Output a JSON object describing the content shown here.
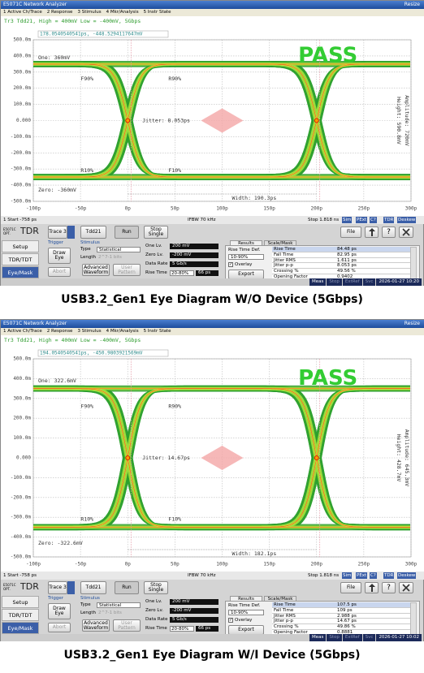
{
  "panels": [
    {
      "window_title": "E5071C Network Analyzer",
      "menu": [
        "1 Active Ch/Trace",
        "2 Response",
        "3 Stimulus",
        "4 Mkr/Analysis",
        "5 Instr State"
      ],
      "resize": "Resize",
      "trace_header": "Tr3 Tdd21, High = 400mV Low = -400mV, 5Gbps",
      "marker_readout": "178.0540540541ps, -448.5294117647mV",
      "y_labels": [
        "500.0m",
        "400.0m",
        "300.0m",
        "200.0m",
        "100.0m",
        "0.000",
        "-100.0m",
        "-200.0m",
        "-300.0m",
        "-400.0m",
        "-500.0m"
      ],
      "x_labels": [
        "-100p",
        "-50p",
        "0p",
        "50p",
        "100p",
        "150p",
        "200p",
        "250p",
        "300p"
      ],
      "annotations": {
        "pass": "PASS",
        "one": "One: 360mV",
        "zero": "Zero: -360mV",
        "jitter": "Jitter: 8.053ps",
        "height": "Height: 590.8mV",
        "amplitude": "Amplitude: 720mV",
        "width": "Width: 190.3ps",
        "f90": "F90%",
        "r90": "R90%",
        "r10": "R10%",
        "f10": "F10%"
      },
      "status": {
        "start": "1 Start -758 ps",
        "ifbw": "IFBW 70 kHz",
        "stop": "Stop 1.818 ns",
        "flags": [
          "Sim",
          "PExt",
          "C?",
          "TDR",
          "Deskew"
        ]
      },
      "toolbar": {
        "logo_small": "E5071C OPT.",
        "logo": "TDR",
        "trace": "Trace 3",
        "param": "Tdd21",
        "run": "Run",
        "stop_single": "Stop Single",
        "file": "File",
        "help": "?"
      },
      "nav": [
        "Setup",
        "TDR/TDT",
        "Eye/Mask"
      ],
      "trigger": {
        "title": "Trigger",
        "draw_eye": "Draw Eye",
        "abort": "Abort"
      },
      "stimulus": {
        "title": "Stimulus",
        "type_label": "Type",
        "type_value": "Statistical",
        "length_label": "Length",
        "length_value": "2^7-1 bits",
        "advanced": "Advanced Waveform",
        "user_pattern": "User Pattern",
        "one_label": "One Lv.",
        "one_value": "200 mV",
        "zero_label": "Zero Lv.",
        "zero_value": "-200 mV",
        "rate_label": "Data Rate",
        "rate_value": "5 Gb/s",
        "rise_label": "Rise Time",
        "rise_def": "20-80%",
        "rise_value": "66 ps"
      },
      "results": {
        "tabs": [
          "Results",
          "Scale/Mask"
        ],
        "rise_def_label": "Rise Time Def.",
        "rise_def_value": "10-90%",
        "overlay": "Overlay",
        "export": "Export",
        "rows": [
          {
            "label": "Rise Time",
            "value": "84.48 ps"
          },
          {
            "label": "Fall Time",
            "value": "82.95 ps"
          },
          {
            "label": "Jitter RMS",
            "value": "1.611 ps"
          },
          {
            "label": "Jitter p-p",
            "value": "8.053 ps"
          },
          {
            "label": "Crossing %",
            "value": "49.56 %"
          },
          {
            "label": "Opening Factor",
            "value": "0.9402"
          }
        ]
      },
      "statusbar": [
        "Meas",
        "Stop",
        "ExtRef",
        "Svc"
      ],
      "timestamp": "2026-01-27 10:20",
      "caption": "USB3.2_Gen1 Eye Diagram W/O Device (5Gbps)"
    },
    {
      "window_title": "E5071C Network Analyzer",
      "menu": [
        "1 Active Ch/Trace",
        "2 Response",
        "3 Stimulus",
        "4 Mkr/Analysis",
        "5 Instr State"
      ],
      "resize": "Resize",
      "trace_header": "Tr3 Tdd21, High = 400mV Low = -400mV, 5Gbps",
      "marker_readout": "194.0540540541ps, -450.9803921569mV",
      "y_labels": [
        "500.0m",
        "400.0m",
        "300.0m",
        "200.0m",
        "100.0m",
        "0.000",
        "-100.0m",
        "-200.0m",
        "-300.0m",
        "-400.0m",
        "-500.0m"
      ],
      "x_labels": [
        "-100p",
        "-50p",
        "0p",
        "50p",
        "100p",
        "150p",
        "200p",
        "250p",
        "300p"
      ],
      "annotations": {
        "pass": "PASS",
        "one": "One: 322.6mV",
        "zero": "Zero: -322.6mV",
        "jitter": "Jitter: 14.67ps",
        "height": "Height: 428.7mV",
        "amplitude": "Amplitude: 645.3mV",
        "width": "Width: 182.1ps",
        "f90": "F90%",
        "r90": "R90%",
        "r10": "R10%",
        "f10": "F10%"
      },
      "status": {
        "start": "1 Start -758 ps",
        "ifbw": "IFBW 70 kHz",
        "stop": "Stop 1.818 ns",
        "flags": [
          "Sim",
          "PExt",
          "C?",
          "TDR",
          "Deskew"
        ]
      },
      "toolbar": {
        "logo_small": "E5071C OPT.",
        "logo": "TDR",
        "trace": "Trace 3",
        "param": "Tdd21",
        "run": "Run",
        "stop_single": "Stop Single",
        "file": "File",
        "help": "?"
      },
      "nav": [
        "Setup",
        "TDR/TDT",
        "Eye/Mask"
      ],
      "trigger": {
        "title": "Trigger",
        "draw_eye": "Draw Eye",
        "abort": "Abort"
      },
      "stimulus": {
        "title": "Stimulus",
        "type_label": "Type",
        "type_value": "Statistical",
        "length_label": "Length",
        "length_value": "2^7-1 bits",
        "advanced": "Advanced Waveform",
        "user_pattern": "User Pattern",
        "one_label": "One Lv.",
        "one_value": "200 mV",
        "zero_label": "Zero Lv.",
        "zero_value": "-200 mV",
        "rate_label": "Data Rate",
        "rate_value": "5 Gb/s",
        "rise_label": "Rise Time",
        "rise_def": "20-80%",
        "rise_value": "66 ps"
      },
      "results": {
        "tabs": [
          "Results",
          "Scale/Mask"
        ],
        "rise_def_label": "Rise Time Def.",
        "rise_def_value": "10-90%",
        "overlay": "Overlay",
        "export": "Export",
        "rows": [
          {
            "label": "Rise Time",
            "value": "107.5 ps"
          },
          {
            "label": "Fall Time",
            "value": "109 ps"
          },
          {
            "label": "Jitter RMS",
            "value": "2.988 ps"
          },
          {
            "label": "Jitter p-p",
            "value": "14.67 ps"
          },
          {
            "label": "Crossing %",
            "value": "49.86 %"
          },
          {
            "label": "Opening Factor",
            "value": "0.8881"
          }
        ]
      },
      "statusbar": [
        "Meas",
        "Stop",
        "ExtRef",
        "Svc"
      ],
      "timestamp": "2026-01-27 10:02",
      "caption": "USB3.2_Gen1 Eye Diagram W/I Device (5Gbps)"
    }
  ]
}
